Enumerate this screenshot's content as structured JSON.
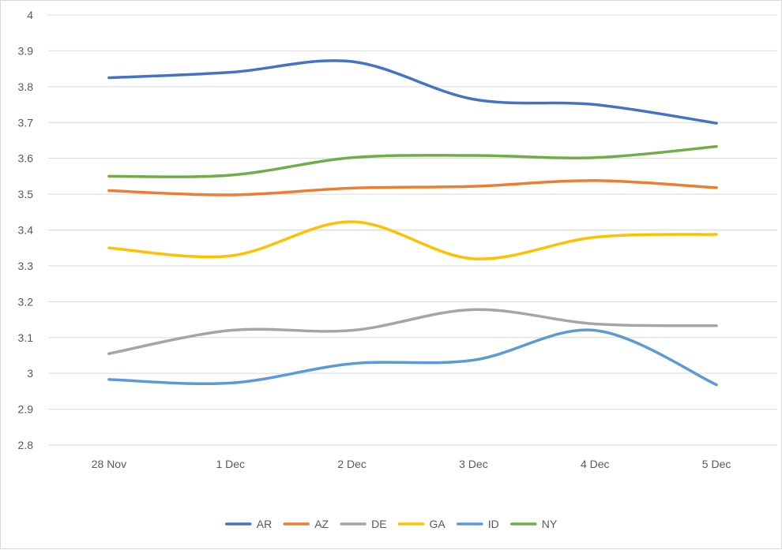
{
  "chart_data": {
    "type": "line",
    "categories": [
      "28 Nov",
      "1 Dec",
      "2 Dec",
      "3 Dec",
      "4 Dec",
      "5 Dec"
    ],
    "series": [
      {
        "name": "AR",
        "color": "#4472C4",
        "values": [
          3.825,
          3.84,
          3.87,
          3.765,
          3.75,
          3.698
        ]
      },
      {
        "name": "AZ",
        "color": "#ED7D31",
        "values": [
          3.51,
          3.498,
          3.517,
          3.522,
          3.538,
          3.518
        ]
      },
      {
        "name": "DE",
        "color": "#A5A5A5",
        "values": [
          3.055,
          3.12,
          3.12,
          3.178,
          3.138,
          3.133
        ]
      },
      {
        "name": "GA",
        "color": "#FFC000",
        "values": [
          3.35,
          3.328,
          3.423,
          3.32,
          3.38,
          3.388
        ]
      },
      {
        "name": "ID",
        "color": "#5B9BD5",
        "values": [
          2.983,
          2.973,
          3.027,
          3.037,
          3.12,
          2.968
        ]
      },
      {
        "name": "NY",
        "color": "#70AD47",
        "values": [
          3.55,
          3.553,
          3.602,
          3.608,
          3.602,
          3.633
        ]
      }
    ],
    "ylim": [
      2.8,
      4
    ],
    "yticks": [
      "2.8",
      "2.9",
      "3",
      "3.1",
      "3.2",
      "3.3",
      "3.4",
      "3.5",
      "3.6",
      "3.7",
      "3.8",
      "3.9",
      "4"
    ],
    "grid": true,
    "smooth": true,
    "legend": "bottom",
    "colors": {
      "grid": "#d9d9d9",
      "text": "#595959",
      "border": "#d9d9d9"
    }
  }
}
